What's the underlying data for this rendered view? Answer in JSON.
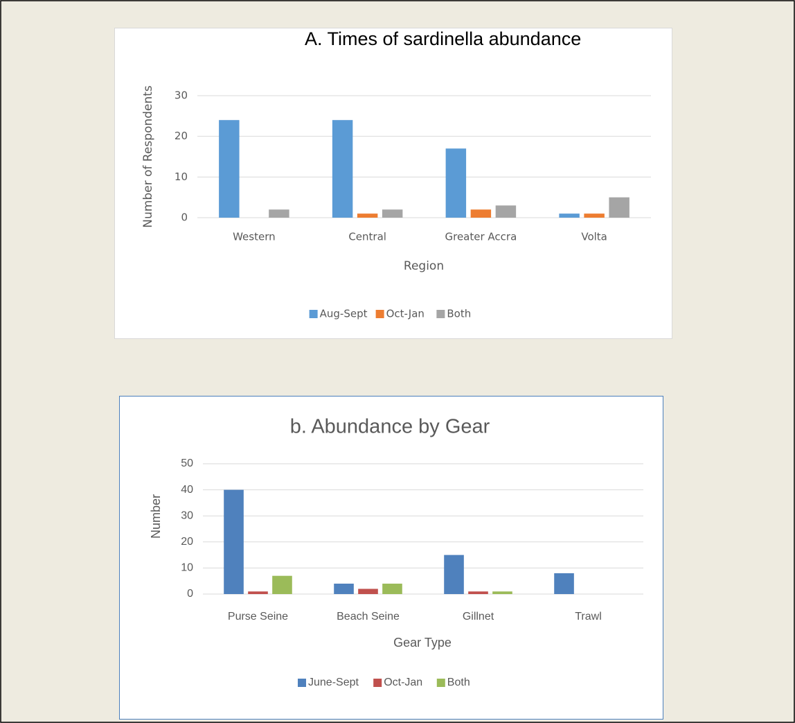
{
  "chart_data": [
    {
      "type": "bar",
      "title": "A.  Times of sardinella abundance",
      "x_label": "Region",
      "y_label": "Number of Respondents",
      "categories": [
        "Western",
        "Central",
        "Greater Accra",
        "Volta"
      ],
      "series": [
        {
          "name": "Aug-Sept",
          "color": "#5b9bd5",
          "values": [
            24,
            24,
            17,
            1
          ]
        },
        {
          "name": "Oct-Jan",
          "color": "#ed7d31",
          "values": [
            0,
            1,
            2,
            1
          ]
        },
        {
          "name": "Both",
          "color": "#a5a5a5",
          "values": [
            2,
            2,
            3,
            5
          ]
        }
      ],
      "ylim": [
        0,
        30
      ],
      "yticks": [
        0,
        10,
        20,
        30
      ],
      "grid": true,
      "legend": "bottom"
    },
    {
      "type": "bar",
      "title": "b. Abundance by Gear",
      "x_label": "Gear Type",
      "y_label": "Number",
      "categories": [
        "Purse Seine",
        "Beach Seine",
        "Gillnet",
        "Trawl"
      ],
      "series": [
        {
          "name": "June-Sept",
          "color": "#4f81bd",
          "values": [
            40,
            4,
            15,
            8
          ]
        },
        {
          "name": "Oct-Jan",
          "color": "#c0504d",
          "values": [
            1,
            2,
            1,
            0
          ]
        },
        {
          "name": "Both",
          "color": "#9bbb59",
          "values": [
            7,
            4,
            1,
            0
          ]
        }
      ],
      "ylim": [
        0,
        50
      ],
      "yticks": [
        0,
        10,
        20,
        30,
        40,
        50
      ],
      "grid": true,
      "legend": "bottom"
    }
  ]
}
